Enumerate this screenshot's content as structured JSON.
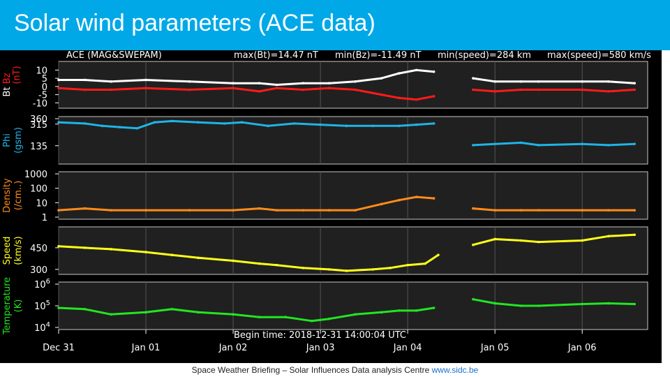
{
  "slide": {
    "title": "Solar wind parameters (ACE data)",
    "footer_text": "Space Weather Briefing – Solar Influences Data analysis Centre",
    "footer_link": "www.sidc.be"
  },
  "chart_data": {
    "type": "line",
    "header": {
      "source": "ACE (MAG&SWEPAM)",
      "max_bt": "max(Bt)=14.47 nT",
      "min_bz": "min(Bz)=-11.49 nT",
      "min_speed": "min(speed)=284 km",
      "max_speed": "max(speed)=580 km/s"
    },
    "begin_time": "Begin time: 2018-12-31 14:00:04 UTC",
    "x_tick_labels": [
      "Dec 31",
      "Jan 01",
      "Jan 02",
      "Jan 03",
      "Jan 04",
      "Jan 05",
      "Jan 06"
    ],
    "x_ticks_days": [
      0,
      1,
      2,
      3,
      4,
      5,
      6
    ],
    "x_range_days": [
      0,
      6.75
    ],
    "data_gap_days": [
      4.35,
      4.72
    ],
    "panels": [
      {
        "ylabel": "Bt  Bz",
        "ylabel_lines": [
          "Bt",
          "Bz",
          "(nT)"
        ],
        "scale": "linear",
        "ylim": [
          -12,
          14
        ],
        "yticks": [
          10,
          5,
          0,
          -5,
          -10
        ],
        "ytick_labels": [
          "10",
          "5",
          "0",
          "-5",
          "-10"
        ],
        "series": [
          {
            "name": "Bt",
            "color": "#ffffff",
            "x": [
              0,
              0.3,
              0.6,
              1.0,
              1.5,
              2.0,
              2.3,
              2.5,
              2.8,
              3.1,
              3.4,
              3.7,
              3.9,
              4.1,
              4.3,
              4.75,
              5.0,
              5.3,
              5.5,
              6.0,
              6.3,
              6.6
            ],
            "values": [
              4,
              4,
              3,
              4,
              3,
              2,
              2,
              1,
              2,
              2,
              3,
              5,
              8,
              10,
              9,
              5,
              3,
              3,
              3,
              3,
              3,
              2
            ]
          },
          {
            "name": "Bz",
            "color": "#ff1a1a",
            "x": [
              0,
              0.3,
              0.6,
              1.0,
              1.5,
              2.0,
              2.3,
              2.5,
              2.8,
              3.1,
              3.4,
              3.7,
              3.9,
              4.1,
              4.3,
              4.75,
              5.0,
              5.3,
              5.5,
              6.0,
              6.3,
              6.6
            ],
            "values": [
              -1,
              -2,
              -2,
              -1,
              -2,
              -1,
              -3,
              -1,
              -2,
              -1,
              -2,
              -5,
              -7,
              -8,
              -6,
              -2,
              -3,
              -2,
              -2,
              -2,
              -3,
              -2
            ]
          }
        ]
      },
      {
        "ylabel_lines": [
          "Phi",
          "(gsm)"
        ],
        "scale": "linear",
        "ylim": [
          0,
          360
        ],
        "yticks": [
          360,
          315,
          135
        ],
        "ytick_labels": [
          "360",
          "315",
          "135"
        ],
        "series": [
          {
            "name": "Phi",
            "color": "#1eb4e6",
            "x": [
              0,
              0.3,
              0.5,
              0.7,
              0.9,
              1.1,
              1.3,
              1.6,
              1.9,
              2.1,
              2.4,
              2.7,
              3.0,
              3.3,
              3.6,
              3.9,
              4.1,
              4.3,
              4.75,
              5.0,
              5.3,
              5.5,
              6.0,
              6.3,
              6.6
            ],
            "values": [
              330,
              320,
              300,
              290,
              280,
              330,
              340,
              330,
              320,
              330,
              300,
              320,
              310,
              300,
              300,
              300,
              310,
              320,
              140,
              150,
              160,
              140,
              150,
              140,
              150
            ]
          }
        ]
      },
      {
        "ylabel_lines": [
          "Density",
          "(/cm..)"
        ],
        "scale": "log",
        "ylim": [
          1,
          1000
        ],
        "yticks": [
          1000,
          100,
          10,
          1
        ],
        "ytick_labels": [
          "1000",
          "100",
          "10",
          "1"
        ],
        "series": [
          {
            "name": "Density",
            "color": "#ff8c1a",
            "x": [
              0,
              0.3,
              0.6,
              1.0,
              1.5,
              2.0,
              2.3,
              2.5,
              2.8,
              3.1,
              3.4,
              3.7,
              3.9,
              4.1,
              4.3,
              4.75,
              5.0,
              5.3,
              5.5,
              6.0,
              6.3,
              6.6
            ],
            "values": [
              3,
              4,
              3,
              3,
              3,
              3,
              4,
              3,
              3,
              3,
              3,
              8,
              15,
              25,
              20,
              4,
              3,
              3,
              3,
              3,
              3,
              3
            ]
          }
        ]
      },
      {
        "ylabel_lines": [
          "Speed",
          "(km/s)"
        ],
        "scale": "linear",
        "ylim": [
          280,
          580
        ],
        "yticks": [
          450,
          300
        ],
        "ytick_labels": [
          "450",
          "300"
        ],
        "series": [
          {
            "name": "Speed",
            "color": "#ffff1a",
            "x": [
              0,
              0.3,
              0.6,
              1.0,
              1.3,
              1.6,
              2.0,
              2.3,
              2.5,
              2.8,
              3.1,
              3.3,
              3.6,
              3.8,
              4.0,
              4.2,
              4.35,
              4.75,
              5.0,
              5.3,
              5.5,
              6.0,
              6.3,
              6.6
            ],
            "values": [
              460,
              450,
              440,
              420,
              400,
              380,
              360,
              340,
              330,
              310,
              300,
              290,
              300,
              310,
              330,
              340,
              400,
              470,
              510,
              500,
              490,
              500,
              530,
              540
            ]
          }
        ]
      },
      {
        "ylabel_lines": [
          "Temperature",
          "(K)"
        ],
        "scale": "log",
        "ylim": [
          10000,
          1000000
        ],
        "yticks": [
          1000000,
          100000,
          10000
        ],
        "ytick_labels": [
          "10^6",
          "10^5",
          "10^4"
        ],
        "series": [
          {
            "name": "Temperature",
            "color": "#22e622",
            "x": [
              0,
              0.3,
              0.6,
              1.0,
              1.3,
              1.6,
              2.0,
              2.3,
              2.6,
              2.9,
              3.1,
              3.4,
              3.7,
              3.9,
              4.1,
              4.3,
              4.75,
              5.0,
              5.3,
              5.5,
              6.0,
              6.3,
              6.6
            ],
            "values": [
              80000,
              70000,
              40000,
              50000,
              70000,
              50000,
              40000,
              30000,
              30000,
              20000,
              25000,
              40000,
              50000,
              60000,
              60000,
              80000,
              200000,
              130000,
              100000,
              100000,
              120000,
              130000,
              120000
            ]
          }
        ]
      }
    ]
  }
}
